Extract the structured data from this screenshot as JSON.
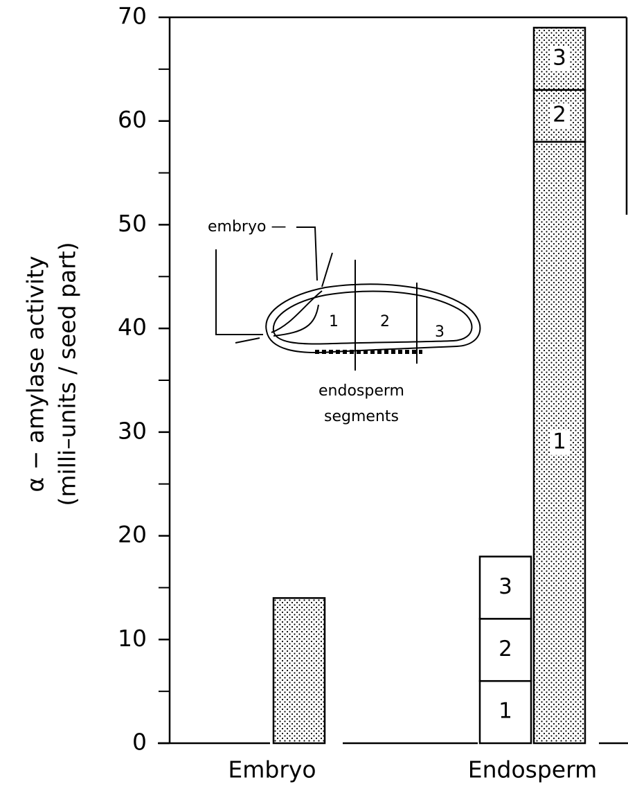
{
  "chart_data": {
    "type": "stacked_bar",
    "y_label": [
      "α − amylase activity",
      "(milli–units / seed part)"
    ],
    "ylim": [
      0,
      70
    ],
    "yticks": [
      0,
      10,
      20,
      30,
      40,
      50,
      60,
      70
    ],
    "yminor_ticks": [
      5,
      15,
      25,
      35,
      45,
      55,
      65
    ],
    "groups": [
      {
        "category": "Embryo",
        "bars": [
          {
            "fill": "dotted",
            "segments": [
              {
                "value": 14
              }
            ]
          }
        ]
      },
      {
        "category": "Endosperm",
        "bars": [
          {
            "fill": "white",
            "segments": [
              {
                "label": "1",
                "value": 6
              },
              {
                "label": "2",
                "value": 6
              },
              {
                "label": "3",
                "value": 6
              }
            ]
          },
          {
            "fill": "dotted",
            "segments": [
              {
                "label": "1",
                "value": 58
              },
              {
                "label": "2",
                "value": 5
              },
              {
                "label": "3",
                "value": 6
              }
            ]
          }
        ]
      }
    ],
    "inset": {
      "embryo_label": "embryo —",
      "segments": [
        "1",
        "2",
        "3"
      ],
      "caption": [
        "endosperm",
        "segments"
      ]
    }
  }
}
